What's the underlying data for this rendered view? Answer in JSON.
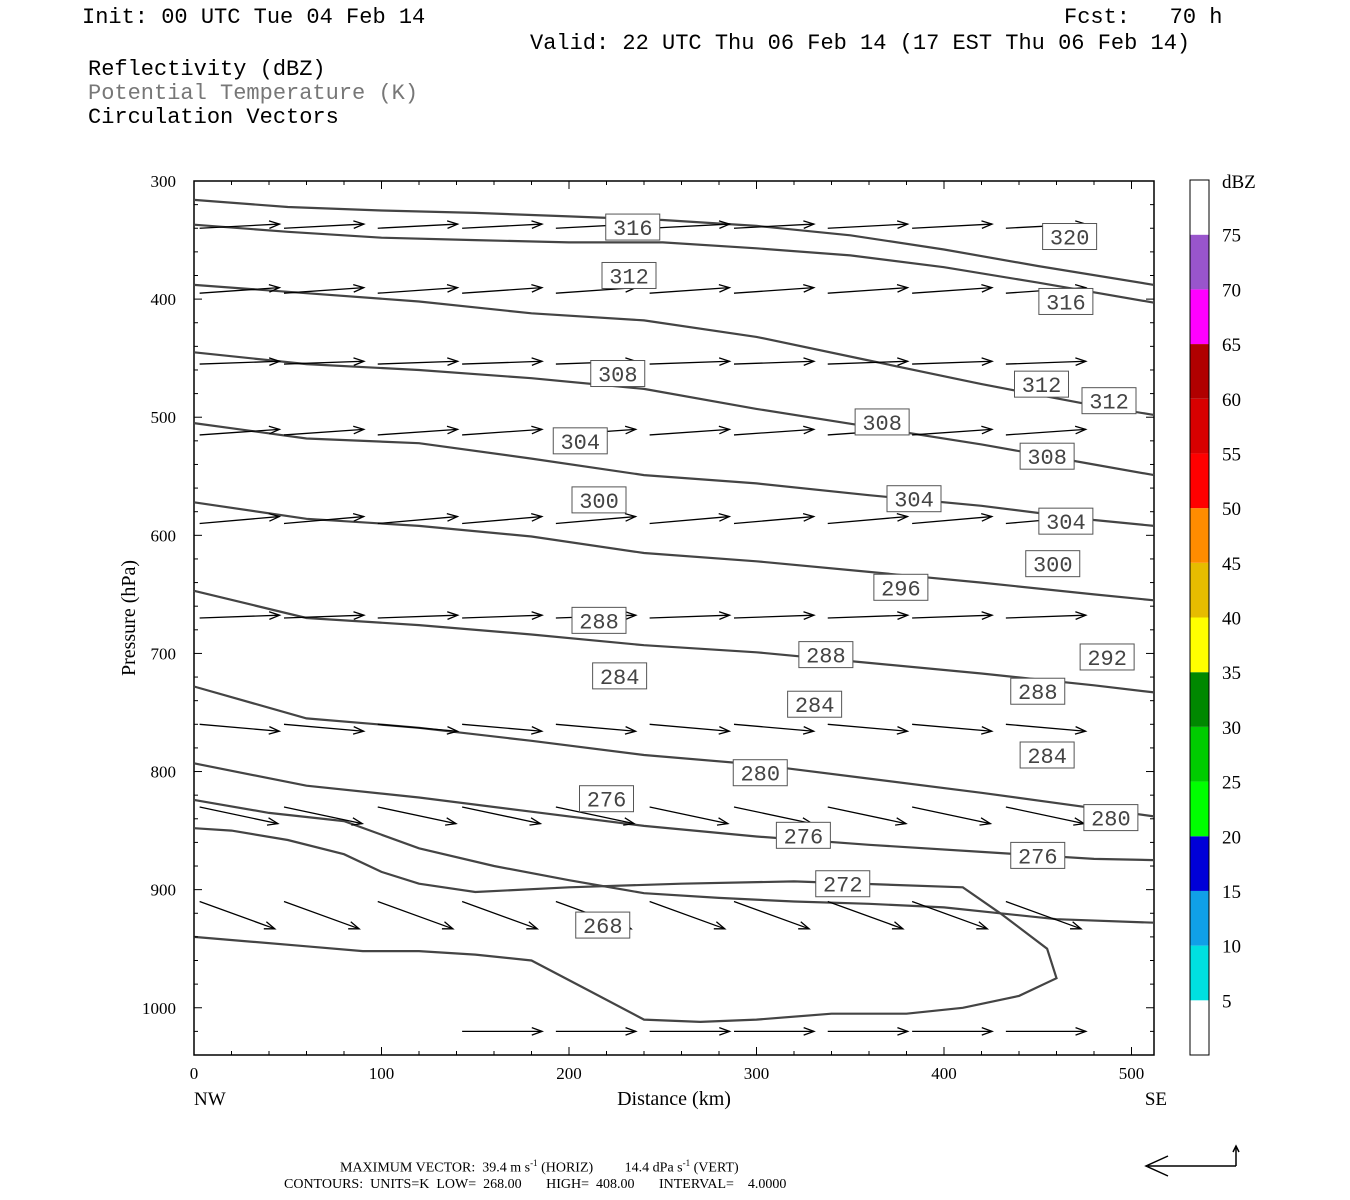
{
  "header": {
    "init": "Init: 00 UTC Tue 04 Feb 14",
    "fcst": "Fcst:   70 h",
    "valid": "Valid: 22 UTC Thu 06 Feb 14 (17 EST Thu 06 Feb 14)",
    "field1": "Reflectivity (dBZ)",
    "field2": "Potential Temperature (K)",
    "field3": "Circulation Vectors"
  },
  "colors": {
    "contour": "#444444",
    "field2_text": "#777777"
  },
  "colorbar": {
    "unit": "dBZ",
    "levels": [
      5,
      10,
      15,
      20,
      25,
      30,
      35,
      40,
      45,
      50,
      55,
      60,
      65,
      70,
      75
    ],
    "colors": [
      "#ffffff",
      "#00e0e0",
      "#10a0e8",
      "#0000d8",
      "#00ff00",
      "#00cc00",
      "#008800",
      "#ffff00",
      "#e6bc00",
      "#ff8c00",
      "#ff0000",
      "#d80000",
      "#b00000",
      "#ff00ff",
      "#9955cc",
      "#ffffff"
    ]
  },
  "footer": {
    "max_vector": "MAXIMUM VECTOR:  39.4 m s",
    "horiz": "-1",
    "horiz_label": "(HORIZ)",
    "vert_value": "14.4 dPa s",
    "vert_sup": "-1",
    "vert_label": "(VERT)",
    "contours": "CONTOURS:  UNITS=K  LOW=  268.00       HIGH=  408.00       INTERVAL=    4.0000"
  },
  "chart_data": {
    "type": "contour",
    "xlabel": "Distance (km)",
    "ylabel": "Pressure (hPa)",
    "xlim": [
      0,
      512
    ],
    "ylim": [
      1040,
      300
    ],
    "x_ticks": [
      0,
      100,
      200,
      300,
      400,
      500
    ],
    "y_ticks": [
      300,
      400,
      500,
      600,
      700,
      800,
      900,
      1000
    ],
    "x_end_labels": {
      "left": "NW",
      "right": "SE"
    },
    "contour_labels": [
      {
        "value": "316",
        "x": 234,
        "p": 339
      },
      {
        "value": "320",
        "x": 467,
        "p": 347
      },
      {
        "value": "312",
        "x": 232,
        "p": 380
      },
      {
        "value": "316",
        "x": 465,
        "p": 402
      },
      {
        "value": "308",
        "x": 226,
        "p": 463
      },
      {
        "value": "312",
        "x": 452,
        "p": 472
      },
      {
        "value": "312",
        "x": 488,
        "p": 486
      },
      {
        "value": "308",
        "x": 367,
        "p": 504
      },
      {
        "value": "304",
        "x": 206,
        "p": 520
      },
      {
        "value": "308",
        "x": 455,
        "p": 533
      },
      {
        "value": "300",
        "x": 216,
        "p": 570
      },
      {
        "value": "304",
        "x": 384,
        "p": 569
      },
      {
        "value": "304",
        "x": 465,
        "p": 588
      },
      {
        "value": "300",
        "x": 458,
        "p": 624
      },
      {
        "value": "296",
        "x": 377,
        "p": 644
      },
      {
        "value": "288",
        "x": 216,
        "p": 672
      },
      {
        "value": "288",
        "x": 337,
        "p": 701
      },
      {
        "value": "292",
        "x": 487,
        "p": 703
      },
      {
        "value": "284",
        "x": 227,
        "p": 719
      },
      {
        "value": "288",
        "x": 450,
        "p": 732
      },
      {
        "value": "284",
        "x": 331,
        "p": 743
      },
      {
        "value": "284",
        "x": 455,
        "p": 786
      },
      {
        "value": "280",
        "x": 302,
        "p": 801
      },
      {
        "value": "276",
        "x": 220,
        "p": 823
      },
      {
        "value": "280",
        "x": 489,
        "p": 839
      },
      {
        "value": "276",
        "x": 325,
        "p": 854
      },
      {
        "value": "276",
        "x": 450,
        "p": 871
      },
      {
        "value": "272",
        "x": 346,
        "p": 895
      },
      {
        "value": "268",
        "x": 218,
        "p": 930
      }
    ],
    "contours": [
      {
        "x": [
          0,
          50,
          100,
          150,
          200,
          250,
          300,
          350,
          400,
          450,
          512
        ],
        "p": [
          316,
          322,
          325,
          327,
          330,
          333,
          338,
          346,
          358,
          372,
          388
        ]
      },
      {
        "x": [
          0,
          50,
          100,
          150,
          200,
          250,
          300,
          350,
          400,
          450,
          512
        ],
        "p": [
          337,
          343,
          348,
          350,
          352,
          352,
          357,
          363,
          373,
          386,
          403
        ]
      },
      {
        "x": [
          0,
          60,
          120,
          180,
          240,
          300,
          360,
          420,
          480,
          512
        ],
        "p": [
          388,
          395,
          402,
          412,
          418,
          432,
          452,
          472,
          490,
          498
        ]
      },
      {
        "x": [
          0,
          60,
          120,
          180,
          240,
          300,
          360,
          420,
          480,
          512
        ],
        "p": [
          445,
          455,
          460,
          467,
          476,
          493,
          508,
          523,
          540,
          549
        ]
      },
      {
        "x": [
          0,
          60,
          120,
          180,
          240,
          300,
          360,
          420,
          480,
          512
        ],
        "p": [
          505,
          518,
          522,
          535,
          549,
          556,
          566,
          575,
          587,
          592
        ]
      },
      {
        "x": [
          0,
          60,
          120,
          180,
          240,
          300,
          360,
          420,
          480,
          512
        ],
        "p": [
          572,
          586,
          592,
          601,
          615,
          622,
          631,
          640,
          650,
          655
        ]
      },
      {
        "x": [
          0,
          60,
          120,
          180,
          240,
          300,
          360,
          420,
          480,
          512
        ],
        "p": [
          647,
          670,
          676,
          684,
          693,
          699,
          708,
          717,
          727,
          733
        ]
      },
      {
        "x": [
          0,
          60,
          120,
          180,
          240,
          300,
          360,
          420,
          480,
          512
        ],
        "p": [
          728,
          755,
          763,
          774,
          786,
          794,
          806,
          818,
          831,
          838
        ]
      },
      {
        "x": [
          0,
          60,
          120,
          180,
          240,
          300,
          360,
          420,
          480,
          512
        ],
        "p": [
          793,
          812,
          822,
          834,
          846,
          855,
          862,
          868,
          874,
          875
        ]
      },
      {
        "x": [
          0,
          40,
          80,
          120,
          160,
          200,
          240,
          280,
          320,
          360,
          400,
          430,
          460,
          512
        ],
        "p": [
          824,
          835,
          842,
          865,
          880,
          892,
          903,
          907,
          910,
          912,
          915,
          920,
          925,
          928
        ]
      },
      {
        "x": [
          0,
          30,
          60,
          90,
          120,
          150,
          180,
          210,
          240,
          270,
          300,
          340,
          380,
          410,
          440,
          460,
          455,
          430,
          410,
          320,
          260,
          200,
          150,
          120,
          100,
          80,
          50,
          20,
          0
        ],
        "p": [
          940,
          944,
          948,
          952,
          952,
          955,
          960,
          985,
          1010,
          1012,
          1010,
          1005,
          1005,
          1000,
          990,
          975,
          950,
          920,
          898,
          893,
          895,
          898,
          902,
          895,
          885,
          870,
          858,
          850,
          848
        ]
      }
    ],
    "vector_rows": [
      {
        "p": 340,
        "x": [
          0,
          45,
          95,
          140,
          190,
          240,
          285,
          335,
          380,
          430,
          475
        ],
        "angle": -3
      },
      {
        "p": 395,
        "x": [
          0,
          45,
          95,
          140,
          190,
          240,
          285,
          335,
          380,
          430,
          475
        ],
        "angle": -4
      },
      {
        "p": 455,
        "x": [
          0,
          45,
          95,
          140,
          190,
          240,
          285,
          335,
          380,
          430,
          475
        ],
        "angle": -2
      },
      {
        "p": 515,
        "x": [
          0,
          45,
          95,
          140,
          190,
          240,
          285,
          335,
          380,
          430,
          475
        ],
        "angle": -4
      },
      {
        "p": 590,
        "x": [
          0,
          45,
          95,
          140,
          190,
          240,
          285,
          335,
          380,
          430,
          475
        ],
        "angle": -5
      },
      {
        "p": 670,
        "x": [
          0,
          45,
          95,
          140,
          190,
          240,
          285,
          335,
          380,
          430,
          475
        ],
        "angle": -2
      },
      {
        "p": 760,
        "x": [
          0,
          45,
          95,
          140,
          190,
          240,
          285,
          335,
          380,
          430,
          475
        ],
        "angle": 5
      },
      {
        "p": 830,
        "x": [
          0,
          45,
          95,
          140,
          190,
          240,
          285,
          335,
          380,
          430,
          475
        ],
        "angle": 12
      },
      {
        "p": 910,
        "x": [
          0,
          45,
          95,
          140,
          190,
          240,
          285,
          335,
          380,
          430,
          475
        ],
        "angle": 20
      },
      {
        "p": 1020,
        "x": [
          140,
          190,
          240,
          285,
          335,
          380,
          430,
          475
        ],
        "angle": 0
      }
    ]
  }
}
